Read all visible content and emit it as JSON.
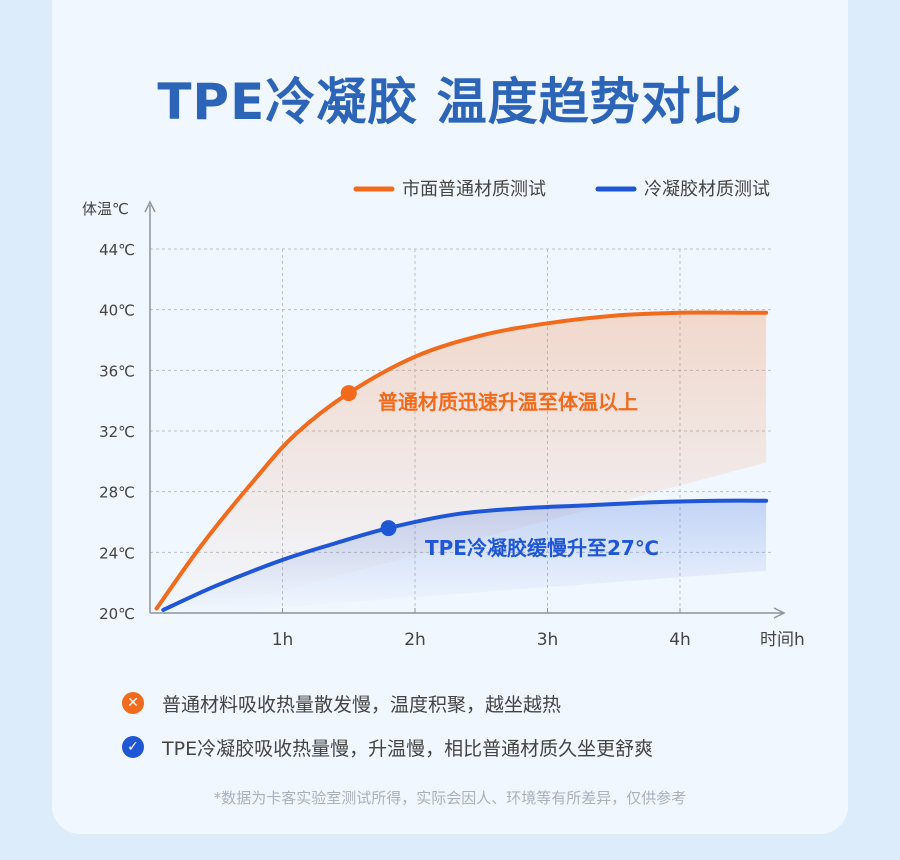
{
  "title": "TPE冷凝胶 温度趋势对比",
  "colors": {
    "orange": "#f26a1b",
    "blue": "#1f56d6"
  },
  "chart_data": {
    "type": "line",
    "ylabel": "体温℃",
    "xlabel": "时间h",
    "ylim": [
      20,
      44
    ],
    "xlim": [
      0,
      4.8
    ],
    "y_ticks": [
      "20℃",
      "24℃",
      "28℃",
      "32℃",
      "36℃",
      "40℃",
      "44℃"
    ],
    "x_ticks": [
      "1h",
      "2h",
      "3h",
      "4h"
    ],
    "grid": true,
    "legend_position": "top-right",
    "series": [
      {
        "name": "市面普通材质测试",
        "color": "#f26a1b",
        "x": [
          0.05,
          0.4,
          0.8,
          1.1,
          1.5,
          2.0,
          2.5,
          3.0,
          3.5,
          4.0,
          4.5,
          4.65
        ],
        "y": [
          20.3,
          24.6,
          28.9,
          31.8,
          34.5,
          36.9,
          38.3,
          39.1,
          39.6,
          39.8,
          39.8,
          39.8
        ],
        "marker": {
          "x": 1.5,
          "y": 34.5
        },
        "annotation": "普通材质迅速升温至体温以上"
      },
      {
        "name": "冷凝胶材质测试",
        "color": "#1f56d6",
        "x": [
          0.1,
          0.5,
          1.0,
          1.4,
          1.8,
          2.3,
          2.8,
          3.3,
          3.8,
          4.3,
          4.65
        ],
        "y": [
          20.2,
          21.8,
          23.5,
          24.6,
          25.6,
          26.5,
          26.9,
          27.1,
          27.3,
          27.4,
          27.4
        ],
        "marker": {
          "x": 1.8,
          "y": 25.6
        },
        "annotation": "TPE冷凝胶缓慢升至27℃"
      }
    ]
  },
  "notes": [
    {
      "icon": "cross-icon",
      "mark": "✕",
      "text": "普通材料吸收热量散发慢，温度积聚，越坐越热"
    },
    {
      "icon": "check-icon",
      "mark": "✓",
      "text": "TPE冷凝胶吸收热量慢，升温慢，相比普通材质久坐更舒爽"
    }
  ],
  "footnote": "*数据为卡客实验室测试所得，实际会因人、环境等有所差异，仅供参考"
}
